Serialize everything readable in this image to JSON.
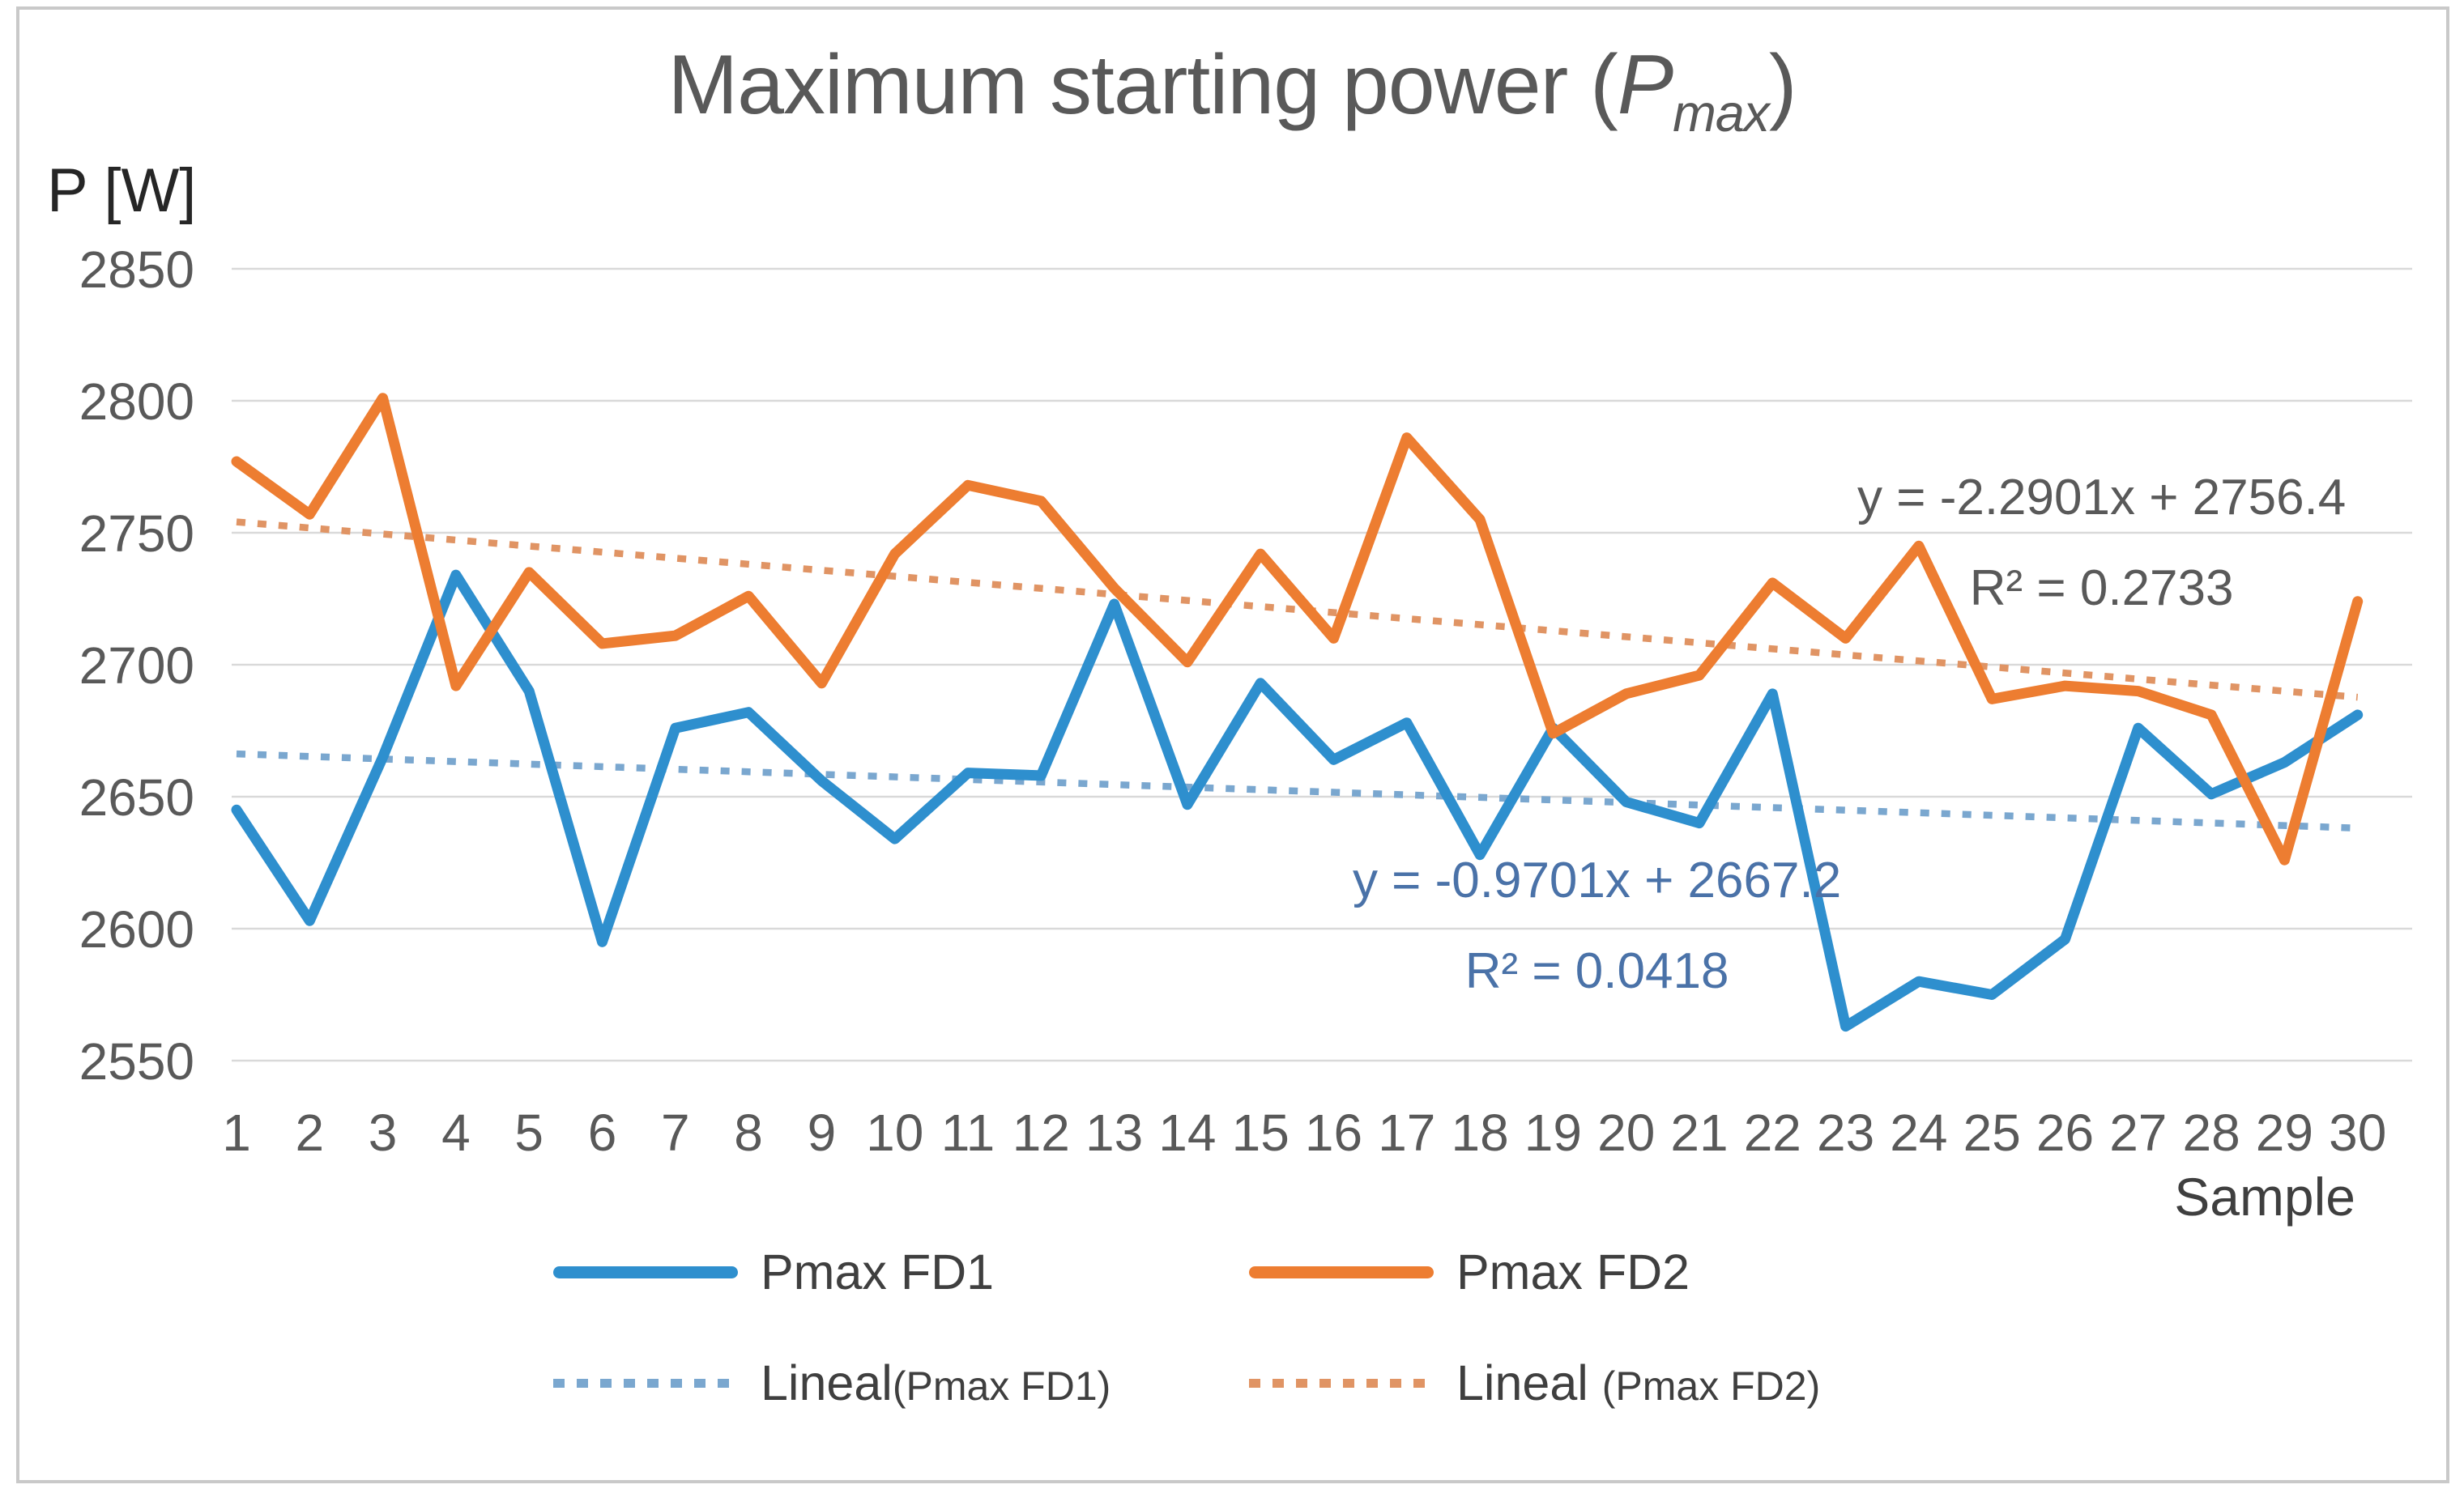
{
  "title": {
    "prefix": "Maximum starting power (",
    "symbol": "P",
    "subscript": "max",
    "suffix": ")"
  },
  "axes": {
    "y_label": "P [W]",
    "x_label": "Sample"
  },
  "legend": {
    "series1_label": "Pmax FD1",
    "series2_label": "Pmax FD2",
    "trend1_prefix": "Lineal",
    "trend1_suffix": "(Pmax FD1)",
    "trend2_prefix": "Lineal ",
    "trend2_suffix": "(Pmax FD2)"
  },
  "colors": {
    "series1": "#2E8FCE",
    "series2": "#ED7D31",
    "trend1": "#7AA7CF",
    "trend2": "#E09464",
    "gridline": "#D9D9D9",
    "tick_text": "#595959",
    "annotation2": "#595959",
    "annotation1": "#4A72A8"
  },
  "annotations": [
    {
      "id": "trend2-equation",
      "lines": [
        "y = -2.2901x + 2756.4",
        "R² = 0.2733"
      ],
      "color": "#595959",
      "anchor_x": 26.5,
      "anchor_y": 2757
    },
    {
      "id": "trend1-equation",
      "lines": [
        "y = -0.9701x + 2667.2",
        "R² = 0.0418"
      ],
      "color": "#4A72A8",
      "anchor_x": 19.6,
      "anchor_y": 2612
    }
  ],
  "chart_data": {
    "type": "line",
    "title": "Maximum starting power (Pmax)",
    "xlabel": "Sample",
    "ylabel": "P [W]",
    "ylim": [
      2550,
      2850
    ],
    "y_ticks": [
      2850,
      2800,
      2750,
      2700,
      2650,
      2600,
      2550
    ],
    "grid": true,
    "legend_position": "bottom",
    "x": [
      1,
      2,
      3,
      4,
      5,
      6,
      7,
      8,
      9,
      10,
      11,
      12,
      13,
      14,
      15,
      16,
      17,
      18,
      19,
      20,
      21,
      22,
      23,
      24,
      25,
      26,
      27,
      28,
      29,
      30
    ],
    "series": [
      {
        "name": "Pmax FD1",
        "color": "#2E8FCE",
        "values": [
          2645,
          2603,
          2665,
          2734,
          2690,
          2595,
          2676,
          2682,
          2656,
          2634,
          2659,
          2658,
          2723,
          2647,
          2693,
          2664,
          2678,
          2628,
          2676,
          2648,
          2640,
          2689,
          2563,
          2580,
          2575,
          2596,
          2676,
          2651,
          2663,
          2681
        ]
      },
      {
        "name": "Pmax FD2",
        "color": "#ED7D31",
        "values": [
          2777,
          2757,
          2801,
          2692,
          2735,
          2708,
          2711,
          2726,
          2693,
          2742,
          2768,
          2762,
          2729,
          2701,
          2742,
          2710,
          2786,
          2755,
          2674,
          2689,
          2696,
          2731,
          2710,
          2745,
          2687,
          2692,
          2690,
          2681,
          2626,
          2724
        ]
      }
    ],
    "trendlines": [
      {
        "name": "Lineal(Pmax FD1)",
        "color": "#7AA7CF",
        "slope": -0.9701,
        "intercept": 2667.2,
        "r2": 0.0418
      },
      {
        "name": "Lineal (Pmax FD2)",
        "color": "#E09464",
        "slope": -2.2901,
        "intercept": 2756.4,
        "r2": 0.2733
      }
    ]
  }
}
